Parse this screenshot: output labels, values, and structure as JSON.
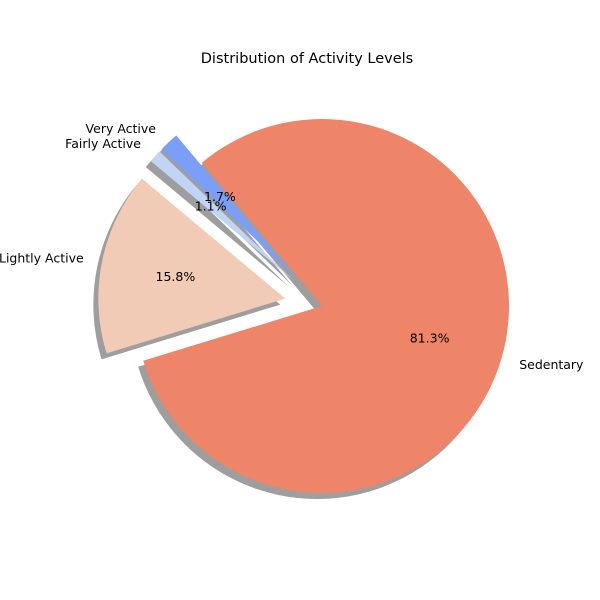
{
  "chart_data": {
    "type": "pie",
    "title": "Distribution of Activity Levels",
    "slices": [
      {
        "label": "Very Active",
        "value": 1.7,
        "pct_label": "1.7%",
        "color": "#7b9ff9",
        "exploded": true
      },
      {
        "label": "Fairly Active",
        "value": 1.1,
        "pct_label": "1.1%",
        "color": "#c0d4f5",
        "exploded": true
      },
      {
        "label": "Lightly Active",
        "value": 15.8,
        "pct_label": "15.8%",
        "color": "#f2cbb7",
        "exploded": true
      },
      {
        "label": "Sedentary",
        "value": 81.3,
        "pct_label": "81.3%",
        "color": "#ee8468",
        "exploded": false
      }
    ],
    "start_angle_deg": 130,
    "shadow": true,
    "legend": "none"
  }
}
